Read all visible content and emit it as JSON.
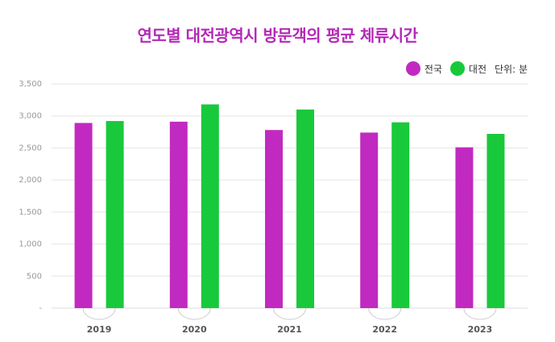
{
  "colors": {
    "title": "#b429b7",
    "series_national": "#c12ac0",
    "series_daejeon": "#19c93c",
    "grid": "#e6e6e6"
  },
  "chart_data": {
    "type": "bar",
    "title": "연도별 대전광역시 방문객의 평균 체류시간",
    "unit_label": "단위: 분",
    "categories": [
      "2019",
      "2020",
      "2021",
      "2022",
      "2023"
    ],
    "series": [
      {
        "name": "전국",
        "values": [
          2890,
          2910,
          2780,
          2740,
          2510
        ]
      },
      {
        "name": "대전",
        "values": [
          2920,
          3180,
          3100,
          2900,
          2720
        ]
      }
    ],
    "ylim": [
      0,
      3500
    ],
    "yticks": [
      0,
      500,
      1000,
      1500,
      2000,
      2500,
      3000,
      3500
    ],
    "ytick_labels": [
      "-",
      "500",
      "1,000",
      "1,500",
      "2,000",
      "2,500",
      "3,000",
      "3,500"
    ],
    "grid": true,
    "legend_position": "top-right",
    "xlabel": "",
    "ylabel": ""
  }
}
